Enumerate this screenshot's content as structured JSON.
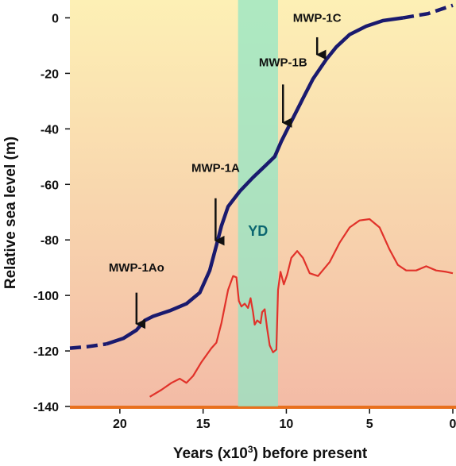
{
  "chart_data": {
    "type": "line",
    "xlabel": "Years (x10",
    "xlabel_sup": "3",
    "xlabel_tail": ") before present",
    "ylabel": "Relative sea level (m)",
    "xlim": [
      23,
      0
    ],
    "ylim": [
      -140,
      5
    ],
    "x_ticks": [
      20,
      15,
      10,
      5,
      0
    ],
    "y_ticks": [
      0,
      -20,
      -40,
      -60,
      -80,
      -100,
      -120,
      -140
    ],
    "grid": false,
    "background_gradient": [
      "#fdf0b5",
      "#f3bba6"
    ],
    "band": {
      "label": "YD",
      "x_start": 12.9,
      "x_end": 10.5,
      "color": "#8fe6c6",
      "label_color": "#0b6670"
    },
    "series": [
      {
        "color": "#1a1a6e",
        "style": "solid",
        "points": [
          [
            20.8,
            -117.5
          ],
          [
            19.8,
            -115.5
          ],
          [
            19.0,
            -112.5
          ],
          [
            18.5,
            -109
          ],
          [
            18.0,
            -107.5
          ],
          [
            17.0,
            -105.5
          ],
          [
            16.0,
            -103
          ],
          [
            15.2,
            -99
          ],
          [
            14.6,
            -91
          ],
          [
            14.2,
            -82
          ],
          [
            13.9,
            -75
          ],
          [
            13.5,
            -68
          ],
          [
            12.8,
            -62.5
          ],
          [
            12.0,
            -57.5
          ],
          [
            11.3,
            -53.5
          ],
          [
            10.7,
            -50
          ],
          [
            10.3,
            -44.5
          ],
          [
            9.8,
            -38.5
          ],
          [
            9.0,
            -29
          ],
          [
            8.4,
            -22
          ],
          [
            7.6,
            -15
          ],
          [
            7.0,
            -10.5
          ],
          [
            6.2,
            -6
          ],
          [
            5.2,
            -3
          ],
          [
            4.2,
            -1
          ],
          [
            3.0,
            0
          ]
        ]
      },
      {
        "color": "#1a1a6e",
        "style": "dashed",
        "points": [
          [
            23.0,
            -119
          ],
          [
            22.0,
            -118.5
          ],
          [
            20.8,
            -117.5
          ]
        ]
      },
      {
        "color": "#1a1a6e",
        "style": "dashed",
        "points": [
          [
            3.0,
            0
          ],
          [
            1.5,
            1.5
          ],
          [
            0.0,
            4.5
          ]
        ]
      },
      {
        "color": "#e1322a",
        "style": "solid",
        "points": [
          [
            18.2,
            -136.5
          ],
          [
            17.5,
            -134
          ],
          [
            16.9,
            -131.5
          ],
          [
            16.4,
            -130
          ],
          [
            16.0,
            -131.5
          ],
          [
            15.6,
            -129
          ],
          [
            15.1,
            -124
          ],
          [
            14.5,
            -119
          ],
          [
            14.2,
            -117
          ],
          [
            13.9,
            -110
          ],
          [
            13.5,
            -98
          ],
          [
            13.2,
            -93
          ],
          [
            13.0,
            -93.5
          ],
          [
            12.85,
            -102
          ],
          [
            12.7,
            -104
          ],
          [
            12.5,
            -103
          ],
          [
            12.3,
            -104.5
          ],
          [
            12.15,
            -101
          ],
          [
            12.0,
            -106
          ],
          [
            11.9,
            -110.5
          ],
          [
            11.75,
            -109
          ],
          [
            11.55,
            -110
          ],
          [
            11.45,
            -106
          ],
          [
            11.3,
            -105
          ],
          [
            11.15,
            -112
          ],
          [
            11.0,
            -118
          ],
          [
            10.8,
            -120.5
          ],
          [
            10.6,
            -119.5
          ],
          [
            10.5,
            -98
          ],
          [
            10.35,
            -91.5
          ],
          [
            10.15,
            -96
          ],
          [
            9.95,
            -92.5
          ],
          [
            9.7,
            -86.5
          ],
          [
            9.35,
            -84
          ],
          [
            9.0,
            -86.5
          ],
          [
            8.6,
            -92
          ],
          [
            8.1,
            -93
          ],
          [
            7.4,
            -88
          ],
          [
            6.8,
            -81
          ],
          [
            6.2,
            -75.5
          ],
          [
            5.6,
            -73
          ],
          [
            5.0,
            -72.5
          ],
          [
            4.4,
            -75.5
          ],
          [
            3.8,
            -83.5
          ],
          [
            3.3,
            -89
          ],
          [
            2.8,
            -91
          ],
          [
            2.2,
            -91
          ],
          [
            1.6,
            -89.5
          ],
          [
            1.0,
            -91
          ],
          [
            0.4,
            -91.5
          ],
          [
            0.0,
            -92
          ]
        ]
      }
    ],
    "annotations": [
      {
        "label": "MWP-1Ao",
        "x": 19.0,
        "y_tail": -99,
        "y_tip": -112,
        "label_y": -90
      },
      {
        "label": "MWP-1A",
        "x": 14.25,
        "y_tail": -65,
        "y_tip": -82,
        "label_y": -54
      },
      {
        "label": "MWP-1B",
        "x": 10.2,
        "y_tail": -24,
        "y_tip": -39.5,
        "label_y": -16
      },
      {
        "label": "MWP-1C",
        "x": 8.15,
        "y_tail": -7,
        "y_tip": -15,
        "label_y": 0
      }
    ],
    "baseline_color": "#e8701e"
  }
}
